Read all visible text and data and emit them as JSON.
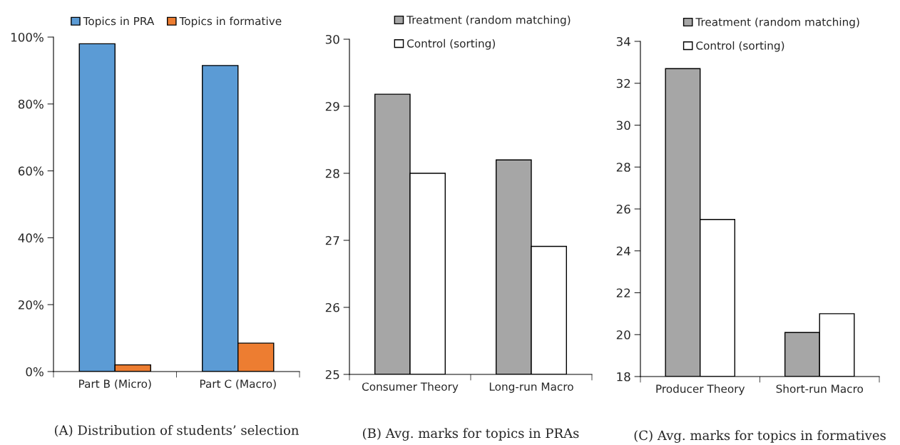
{
  "chart_data": [
    {
      "type": "bar",
      "categories": [
        "Part B (Micro)",
        "Part C (Macro)"
      ],
      "series": [
        {
          "name": "Topics in PRA",
          "color": "#5b9bd5",
          "values": [
            98,
            91.5
          ]
        },
        {
          "name": "Topics in formative",
          "color": "#ed7d31",
          "values": [
            2,
            8.5
          ]
        }
      ],
      "ylim": [
        0,
        100
      ],
      "yticks": [
        {
          "value": 0,
          "label": "0%"
        },
        {
          "value": 20,
          "label": "20%"
        },
        {
          "value": 40,
          "label": "40%"
        },
        {
          "value": 60,
          "label": "60%"
        },
        {
          "value": 80,
          "label": "80%"
        },
        {
          "value": 100,
          "label": "100%"
        }
      ],
      "legend": "top",
      "grid": false,
      "annotations": [
        "(A) Distribution of students’ selection"
      ]
    },
    {
      "type": "bar",
      "categories": [
        "Consumer Theory",
        "Long-run Macro"
      ],
      "series": [
        {
          "name": "Treatment (random matching)",
          "color": "#a6a6a6",
          "values": [
            29.18,
            28.2
          ]
        },
        {
          "name": "Control (sorting)",
          "color": "#ffffff",
          "values": [
            28.0,
            26.91
          ]
        }
      ],
      "ylim": [
        25,
        30
      ],
      "yticks": [
        25,
        26,
        27,
        28,
        29,
        30
      ],
      "legend": "top",
      "grid": false,
      "annotations": [
        "(B) Avg. marks for topics in PRAs"
      ]
    },
    {
      "type": "bar",
      "categories": [
        "Producer Theory",
        "Short-run Macro"
      ],
      "series": [
        {
          "name": "Treatment (random matching)",
          "color": "#a6a6a6",
          "values": [
            32.7,
            20.1
          ]
        },
        {
          "name": "Control (sorting)",
          "color": "#ffffff",
          "values": [
            25.5,
            21.0
          ]
        }
      ],
      "ylim": [
        18,
        34
      ],
      "yticks": [
        18,
        20,
        22,
        24,
        26,
        28,
        30,
        32,
        34
      ],
      "legend": "top",
      "grid": false,
      "annotations": [
        "(C) Avg. marks for topics in formatives"
      ]
    }
  ]
}
